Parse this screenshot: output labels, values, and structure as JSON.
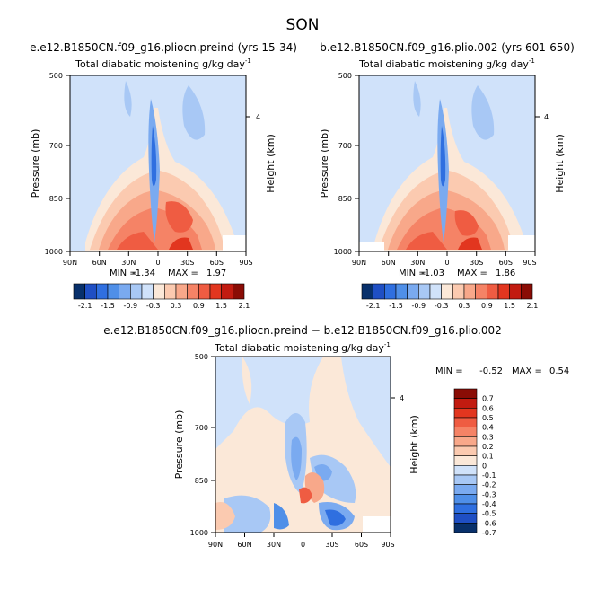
{
  "figure": {
    "main_title": "SON"
  },
  "colors": {
    "levels": [
      "#08306b",
      "#1f4fc4",
      "#2f6fe0",
      "#4f8fe8",
      "#7aaaf0",
      "#a8c8f5",
      "#d0e2fa",
      "#fbe8d8",
      "#fbcab0",
      "#f8a88a",
      "#f58366",
      "#ef5c42",
      "#e2361f",
      "#c21b10",
      "#8a0c05"
    ]
  },
  "chart_data": [
    {
      "type": "heatmap",
      "title": "e.e12.B1850CN.f09_g16.pliocn.preind (yrs 15-34)",
      "subtitle": "Total diabatic moistening",
      "units": "g/kg day",
      "units_exp": "-1",
      "ylabel": "Pressure (mb)",
      "right_label": "Height (km)",
      "right_tick": "4",
      "x_ticks": [
        "90N",
        "60N",
        "30N",
        "0",
        "30S",
        "60S",
        "90S"
      ],
      "y_ticks": [
        "500",
        "700",
        "850",
        "1000"
      ],
      "ylim": [
        1000,
        500
      ],
      "stats": {
        "min_label": "MIN =",
        "min": "-1.34",
        "max_label": "MAX =",
        "max": "1.97"
      },
      "colorbar": {
        "orientation": "horizontal",
        "labels": [
          "-2.1",
          "-1.5",
          "-0.9",
          "-0.3",
          "0.3",
          "0.9",
          "1.5",
          "2.1"
        ]
      }
    },
    {
      "type": "heatmap",
      "title": "b.e12.B1850CN.f09_g16.plio.002 (yrs 601-650)",
      "subtitle": "Total diabatic moistening",
      "units": "g/kg day",
      "units_exp": "-1",
      "ylabel": "Pressure (mb)",
      "right_label": "Height (km)",
      "right_tick": "4",
      "x_ticks": [
        "90N",
        "60N",
        "30N",
        "0",
        "30S",
        "60S",
        "90S"
      ],
      "y_ticks": [
        "500",
        "700",
        "850",
        "1000"
      ],
      "ylim": [
        1000,
        500
      ],
      "stats": {
        "min_label": "MIN =",
        "min": "-1.03",
        "max_label": "MAX =",
        "max": "1.86"
      },
      "colorbar": {
        "orientation": "horizontal",
        "labels": [
          "-2.1",
          "-1.5",
          "-0.9",
          "-0.3",
          "0.3",
          "0.9",
          "1.5",
          "2.1"
        ]
      }
    },
    {
      "type": "heatmap",
      "title": "e.e12.B1850CN.f09_g16.pliocn.preind − b.e12.B1850CN.f09_g16.plio.002",
      "subtitle": "Total diabatic moistening",
      "units": "g/kg day",
      "units_exp": "-1",
      "ylabel": "Pressure (mb)",
      "right_label": "Height (km)",
      "right_tick": "4",
      "x_ticks": [
        "90N",
        "60N",
        "30N",
        "0",
        "30S",
        "60S",
        "90S"
      ],
      "y_ticks": [
        "500",
        "700",
        "850",
        "1000"
      ],
      "ylim": [
        1000,
        500
      ],
      "stats": {
        "min_label": "MIN =",
        "min": "-0.52",
        "max_label": "MAX =",
        "max": "0.54"
      },
      "colorbar": {
        "orientation": "vertical",
        "labels": [
          "0.7",
          "0.6",
          "0.5",
          "0.4",
          "0.3",
          "0.2",
          "0.1",
          "0",
          "-0.1",
          "-0.2",
          "-0.3",
          "-0.4",
          "-0.5",
          "-0.6",
          "-0.7"
        ]
      }
    }
  ]
}
